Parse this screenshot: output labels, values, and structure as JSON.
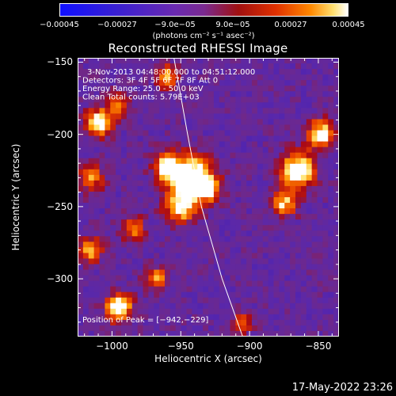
{
  "chart_data": {
    "type": "heatmap",
    "title": "Reconstructed RHESSI Image",
    "xlabel": "Heliocentric X (arcsec)",
    "ylabel": "Heliocentric Y (arcsec)",
    "xlim": [
      -1025,
      -835
    ],
    "ylim": [
      -340,
      -147
    ],
    "x_ticks": [
      {
        "value": -1000,
        "label": "−1000"
      },
      {
        "value": -950,
        "label": "−950"
      },
      {
        "value": -900,
        "label": "−900"
      },
      {
        "value": -850,
        "label": "−850"
      }
    ],
    "y_ticks": [
      {
        "value": -150,
        "label": "−150"
      },
      {
        "value": -200,
        "label": "−200"
      },
      {
        "value": -250,
        "label": "−250"
      },
      {
        "value": -300,
        "label": "−300"
      }
    ],
    "colorbar": {
      "ticks": [
        {
          "value": -0.00045,
          "label": "−0.00045"
        },
        {
          "value": -0.00027,
          "label": "−0.00027"
        },
        {
          "value": -9e-05,
          "label": "−9.0e−05"
        },
        {
          "value": 9e-05,
          "label": "9.0e−05"
        },
        {
          "value": 0.00027,
          "label": "0.00027"
        },
        {
          "value": 0.00045,
          "label": "0.00045"
        }
      ],
      "units": "(photons cm⁻² s⁻¹ asec⁻²)"
    },
    "annotations": [
      "3-Nov-2013 04:48:00.000 to 04:51:12.000",
      "Detectors: 3F 4F 5F 6F 7F 8F  Att 0",
      "Energy Range: 25.0 - 50.0 keV",
      "Clean     Total counts: 5.79E+03"
    ],
    "peak_label": "Position of Peak = [−942,−229]",
    "peak": {
      "x": -942,
      "y": -229
    },
    "limb_curve": [
      [
        -955,
        -147
      ],
      [
        -945,
        -200
      ],
      [
        -935,
        -250
      ],
      [
        -920,
        -300
      ],
      [
        -905,
        -340
      ]
    ],
    "blobs": [
      {
        "x": -942,
        "y": -230,
        "amp": 1.0,
        "r": 14
      },
      {
        "x": -960,
        "y": -222,
        "amp": 0.75,
        "r": 10
      },
      {
        "x": -950,
        "y": -250,
        "amp": 0.7,
        "r": 11
      },
      {
        "x": -930,
        "y": -238,
        "amp": 0.55,
        "r": 9
      },
      {
        "x": -1010,
        "y": -192,
        "amp": 0.85,
        "r": 9
      },
      {
        "x": -995,
        "y": -180,
        "amp": 0.55,
        "r": 8
      },
      {
        "x": -1015,
        "y": -230,
        "amp": 0.5,
        "r": 9
      },
      {
        "x": -865,
        "y": -225,
        "amp": 0.9,
        "r": 12
      },
      {
        "x": -848,
        "y": -200,
        "amp": 0.75,
        "r": 10
      },
      {
        "x": -875,
        "y": -248,
        "amp": 0.6,
        "r": 9
      },
      {
        "x": -995,
        "y": -320,
        "amp": 0.9,
        "r": 9
      },
      {
        "x": -1015,
        "y": -280,
        "amp": 0.6,
        "r": 8
      },
      {
        "x": -968,
        "y": -300,
        "amp": 0.55,
        "r": 8
      },
      {
        "x": -960,
        "y": -160,
        "amp": 0.55,
        "r": 8
      },
      {
        "x": -985,
        "y": -265,
        "amp": 0.5,
        "r": 8
      },
      {
        "x": -905,
        "y": -330,
        "amp": 0.45,
        "r": 7
      }
    ]
  },
  "footer_timestamp": "17-May-2022 23:26"
}
